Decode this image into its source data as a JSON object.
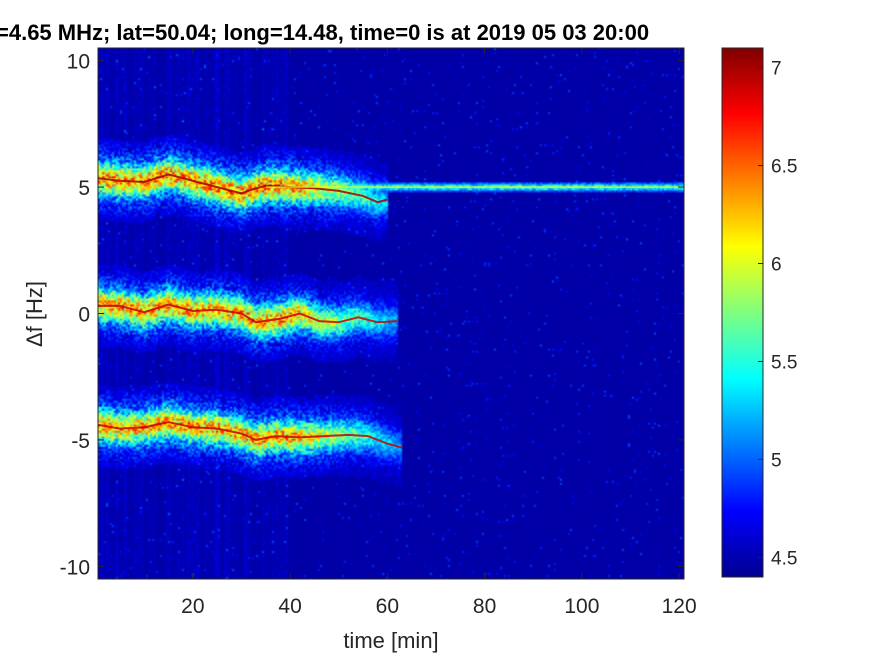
{
  "chart_data": {
    "type": "heatmap",
    "title": "=4.65 MHz;  lat=50.04; long=14.48, time=0 is at 2019 05 03 20:00",
    "xlabel": "time [min]",
    "ylabel": "Δf [Hz]",
    "xlim": [
      0.5,
      121
    ],
    "ylim": [
      -10.5,
      10.5
    ],
    "xticks": [
      20,
      40,
      60,
      80,
      100,
      120
    ],
    "xtick_labels": [
      "20",
      "40",
      "60",
      "80",
      "100",
      "120"
    ],
    "yticks": [
      10,
      5,
      0,
      -5,
      -10
    ],
    "ytick_labels": [
      "10",
      "5",
      "0",
      "-5",
      "-10"
    ],
    "colorbar": {
      "range": [
        4.4,
        7.1
      ],
      "ticks": [
        7,
        6.5,
        6,
        5.5,
        5,
        4.5
      ],
      "tick_labels": [
        "7",
        "6.5",
        "6",
        "5.5",
        "5",
        "4.5"
      ],
      "colormap": "jet"
    },
    "background_value": 4.45,
    "traces": [
      {
        "name": "",
        "points": [
          [
            0.5,
            5.35
          ],
          [
            5,
            5.25
          ],
          [
            10,
            5.2
          ],
          [
            15,
            5.5
          ],
          [
            20,
            5.25
          ],
          [
            25,
            5.0
          ],
          [
            30,
            4.75
          ],
          [
            32,
            4.9
          ],
          [
            35,
            5.05
          ],
          [
            40,
            5.0
          ],
          [
            45,
            4.95
          ],
          [
            50,
            4.85
          ],
          [
            55,
            4.65
          ],
          [
            58,
            4.4
          ],
          [
            60,
            4.5
          ]
        ],
        "peak": 7.0
      },
      {
        "name": "",
        "points": [
          [
            0.5,
            0.3
          ],
          [
            5,
            0.3
          ],
          [
            10,
            0.05
          ],
          [
            15,
            0.35
          ],
          [
            20,
            0.1
          ],
          [
            25,
            0.15
          ],
          [
            30,
            0.0
          ],
          [
            33,
            -0.35
          ],
          [
            38,
            -0.2
          ],
          [
            42,
            0.0
          ],
          [
            46,
            -0.3
          ],
          [
            50,
            -0.35
          ],
          [
            54,
            -0.15
          ],
          [
            58,
            -0.35
          ],
          [
            62,
            -0.3
          ]
        ],
        "peak": 6.9
      },
      {
        "name": "",
        "points": [
          [
            0.5,
            -4.4
          ],
          [
            5,
            -4.55
          ],
          [
            10,
            -4.5
          ],
          [
            15,
            -4.3
          ],
          [
            20,
            -4.5
          ],
          [
            25,
            -4.55
          ],
          [
            30,
            -4.75
          ],
          [
            33,
            -5.0
          ],
          [
            37,
            -4.85
          ],
          [
            42,
            -4.9
          ],
          [
            47,
            -4.85
          ],
          [
            52,
            -4.8
          ],
          [
            56,
            -4.85
          ],
          [
            60,
            -5.15
          ],
          [
            63,
            -5.3
          ]
        ],
        "peak": 6.9
      },
      {
        "name": "",
        "points": [
          [
            35,
            5.0
          ],
          [
            60,
            5.0
          ],
          [
            90,
            5.0
          ],
          [
            121,
            5.0
          ]
        ],
        "peak": 6.0
      }
    ]
  }
}
